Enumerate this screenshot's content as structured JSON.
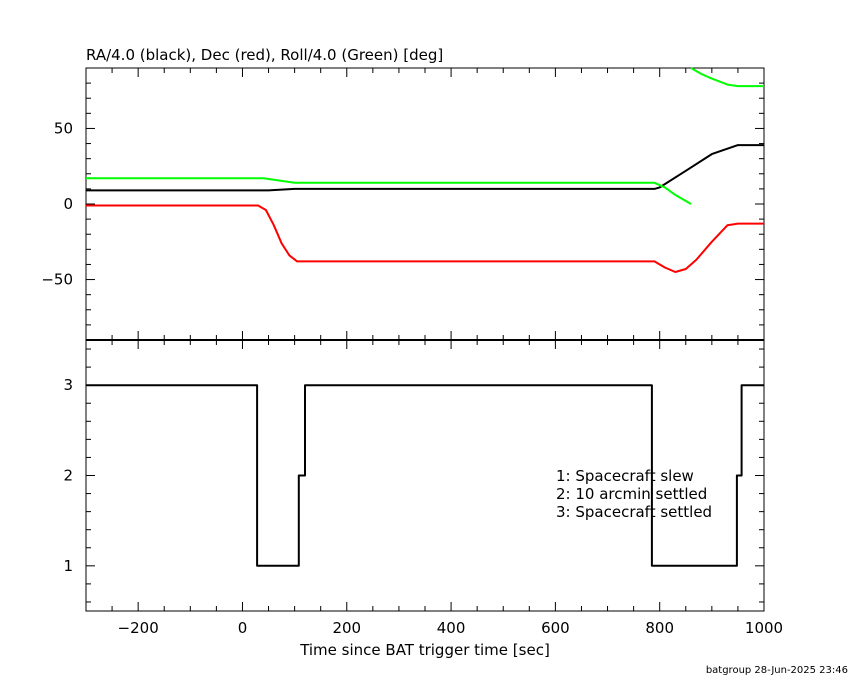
{
  "chart_data": [
    {
      "type": "line",
      "title": "RA/4.0 (black), Dec (red), Roll/4.0 (Green) [deg]",
      "xlim": [
        -300,
        1000
      ],
      "ylim": [
        -90,
        90
      ],
      "yticks": [
        -50,
        0,
        50
      ],
      "ytick_labels": [
        "−50",
        "0",
        "50"
      ],
      "grid": false,
      "series": [
        {
          "color": "#000000",
          "x": [
            -300,
            0,
            50,
            100,
            150,
            300,
            500,
            700,
            790,
            800,
            850,
            900,
            950,
            1000
          ],
          "y": [
            9,
            9,
            9,
            10,
            10,
            10,
            10,
            10,
            10,
            11,
            22,
            33,
            39,
            39
          ]
        },
        {
          "color": "#ff0000",
          "x": [
            -300,
            0,
            30,
            45,
            60,
            75,
            90,
            105,
            120,
            300,
            500,
            700,
            790,
            810,
            830,
            850,
            870,
            900,
            930,
            950,
            1000
          ],
          "y": [
            -1,
            -1,
            -1,
            -4,
            -14,
            -26,
            -34,
            -38,
            -38,
            -38,
            -38,
            -38,
            -38,
            -42,
            -45,
            -43,
            -37,
            -25,
            -14,
            -13,
            -13
          ]
        },
        {
          "color": "#00ff00",
          "x": [
            -300,
            0,
            40,
            60,
            80,
            100,
            300,
            500,
            700,
            790,
            810,
            830,
            860
          ],
          "y": [
            17,
            17,
            17,
            16,
            15,
            14,
            14,
            14,
            14,
            14,
            11,
            6,
            0
          ]
        },
        {
          "color": "#00ff00",
          "x": [
            860,
            880,
            900,
            930,
            950,
            1000
          ],
          "y": [
            90,
            86,
            83,
            79,
            78,
            78
          ]
        }
      ]
    },
    {
      "type": "line",
      "xlabel": "Time since BAT trigger time [sec]",
      "xlim": [
        -300,
        1000
      ],
      "ylim": [
        0.5,
        3.5
      ],
      "xticks": [
        -200,
        0,
        200,
        400,
        600,
        800,
        1000
      ],
      "xtick_labels": [
        "−200",
        "0",
        "200",
        "400",
        "600",
        "800",
        "1000"
      ],
      "yticks": [
        1,
        2,
        3
      ],
      "ytick_labels": [
        "1",
        "2",
        "3"
      ],
      "grid": false,
      "annotations": [
        "1: Spacecraft slew",
        "2: 10 arcmin settled",
        "3: Spacecraft settled"
      ],
      "series": [
        {
          "color": "#000000",
          "x": [
            -300,
            28,
            28,
            108,
            108,
            120,
            120,
            785,
            785,
            948,
            948,
            957,
            957,
            1000
          ],
          "y": [
            3,
            3,
            1,
            1,
            2,
            2,
            3,
            3,
            1,
            1,
            2,
            2,
            3,
            3
          ]
        }
      ]
    }
  ],
  "footer": "batgroup 28-Jun-2025 23:46"
}
